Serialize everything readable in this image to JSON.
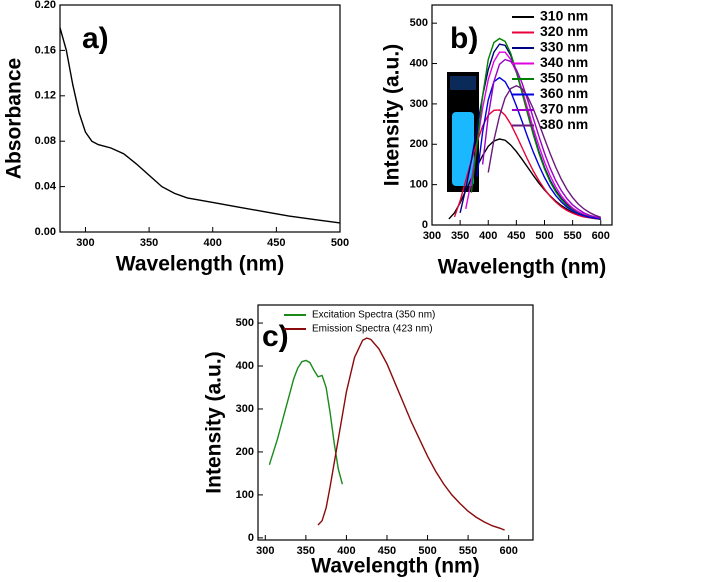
{
  "chart_data": [
    {
      "type": "line",
      "panel_label": "a)",
      "xlabel": "Wavelength (nm)",
      "ylabel": "Absorbance",
      "xlim": [
        280,
        500
      ],
      "ylim": [
        0,
        0.2
      ],
      "xticks": [
        300,
        350,
        400,
        450,
        500
      ],
      "yticks": [
        {
          "value": 0,
          "label": "0.00"
        },
        {
          "value": 0.04,
          "label": "0.04"
        },
        {
          "value": 0.08,
          "label": "0.08"
        },
        {
          "value": 0.12,
          "label": "0.12"
        },
        {
          "value": 0.16,
          "label": "0.16"
        },
        {
          "value": 0.2,
          "label": "0.20"
        }
      ],
      "x": [
        280,
        285,
        290,
        295,
        300,
        305,
        310,
        320,
        330,
        340,
        350,
        360,
        370,
        380,
        390,
        400,
        420,
        440,
        460,
        480,
        500
      ],
      "values": [
        0.18,
        0.16,
        0.13,
        0.105,
        0.088,
        0.08,
        0.077,
        0.074,
        0.069,
        0.06,
        0.05,
        0.04,
        0.034,
        0.03,
        0.028,
        0.026,
        0.022,
        0.018,
        0.014,
        0.011,
        0.008
      ],
      "color": "#000000"
    },
    {
      "type": "line",
      "panel_label": "b)",
      "xlabel": "Wavelength (nm)",
      "ylabel": "Intensity (a.u.)",
      "xlim": [
        300,
        620
      ],
      "ylim": [
        0,
        545
      ],
      "xticks": [
        300,
        350,
        400,
        450,
        500,
        550,
        600
      ],
      "yticks": [
        0,
        100,
        200,
        300,
        400,
        500
      ],
      "legend": "upper right",
      "x": [
        330,
        340,
        350,
        360,
        370,
        380,
        390,
        400,
        410,
        420,
        430,
        440,
        450,
        460,
        470,
        480,
        490,
        500,
        510,
        520,
        530,
        540,
        550,
        560,
        570,
        580,
        590,
        600
      ],
      "series": [
        {
          "name": "310 nm",
          "color": "#000000",
          "values": [
            15,
            30,
            55,
            85,
            115,
            145,
            172,
            195,
            208,
            213,
            210,
            198,
            182,
            163,
            143,
            123,
            104,
            87,
            72,
            59,
            48,
            39,
            31,
            25,
            21,
            18,
            16,
            14
          ]
        },
        {
          "name": "320 nm",
          "color": "#e8003c",
          "values": [
            null,
            20,
            60,
            110,
            160,
            205,
            245,
            272,
            284,
            285,
            272,
            250,
            222,
            192,
            162,
            134,
            110,
            89,
            71,
            57,
            45,
            36,
            29,
            24,
            20,
            18,
            16,
            15
          ]
        },
        {
          "name": "330 nm",
          "color": "#000080",
          "values": [
            null,
            null,
            30,
            90,
            160,
            240,
            320,
            385,
            428,
            448,
            445,
            420,
            380,
            330,
            278,
            228,
            182,
            143,
            111,
            86,
            66,
            51,
            40,
            31,
            25,
            21,
            18,
            16
          ]
        },
        {
          "name": "340 nm",
          "color": "#e000e0",
          "values": [
            null,
            null,
            null,
            40,
            110,
            200,
            290,
            360,
            405,
            428,
            428,
            410,
            378,
            335,
            288,
            240,
            196,
            156,
            122,
            94,
            72,
            55,
            42,
            33,
            26,
            21,
            18,
            16
          ]
        },
        {
          "name": "350 nm",
          "color": "#008000",
          "values": [
            null,
            null,
            null,
            null,
            80,
            200,
            320,
            410,
            452,
            462,
            455,
            425,
            380,
            328,
            275,
            224,
            178,
            139,
            107,
            82,
            63,
            48,
            37,
            29,
            24,
            20,
            17,
            15
          ]
        },
        {
          "name": "360 nm",
          "color": "#0000e0",
          "values": [
            null,
            null,
            null,
            null,
            null,
            120,
            230,
            310,
            355,
            365,
            355,
            330,
            295,
            257,
            218,
            181,
            148,
            118,
            93,
            73,
            57,
            44,
            35,
            28,
            23,
            19,
            17,
            15
          ]
        },
        {
          "name": "370 nm",
          "color": "#9a00c8",
          "values": [
            null,
            null,
            null,
            null,
            null,
            null,
            150,
            270,
            355,
            398,
            410,
            405,
            385,
            352,
            310,
            265,
            220,
            178,
            141,
            110,
            85,
            65,
            50,
            39,
            30,
            24,
            20,
            17
          ]
        },
        {
          "name": "380 nm",
          "color": "#6a1a7a",
          "values": [
            null,
            null,
            null,
            null,
            null,
            null,
            null,
            130,
            210,
            270,
            315,
            338,
            345,
            338,
            318,
            288,
            252,
            214,
            177,
            143,
            113,
            88,
            68,
            52,
            40,
            31,
            24,
            19
          ]
        }
      ]
    },
    {
      "type": "line",
      "panel_label": "c)",
      "xlabel": "Wavelength (nm)",
      "ylabel": "Intensity (a.u.)",
      "xlim": [
        291,
        630
      ],
      "ylim": [
        -5,
        542
      ],
      "xticks": [
        300,
        350,
        400,
        450,
        500,
        550,
        600
      ],
      "yticks": [
        0,
        100,
        200,
        300,
        400,
        500
      ],
      "legend": "upper left",
      "series": [
        {
          "name": "Excitation Spectra (350 nm)",
          "color": "#1a8a1a",
          "x": [
            305,
            310,
            315,
            320,
            325,
            330,
            335,
            340,
            345,
            350,
            355,
            360,
            365,
            370,
            375,
            380,
            385,
            390,
            395
          ],
          "values": [
            170,
            200,
            230,
            265,
            300,
            335,
            370,
            395,
            410,
            413,
            408,
            390,
            375,
            378,
            350,
            290,
            220,
            160,
            125
          ]
        },
        {
          "name": "Emission Spectra (423 nm)",
          "color": "#8b0a0a",
          "x": [
            365,
            370,
            375,
            380,
            390,
            400,
            410,
            420,
            425,
            430,
            440,
            450,
            460,
            470,
            480,
            490,
            500,
            510,
            520,
            530,
            540,
            550,
            560,
            570,
            580,
            590,
            595
          ],
          "values": [
            30,
            40,
            70,
            120,
            230,
            340,
            420,
            460,
            465,
            462,
            440,
            405,
            360,
            315,
            270,
            230,
            190,
            155,
            125,
            100,
            80,
            62,
            48,
            37,
            28,
            22,
            18
          ]
        }
      ]
    }
  ]
}
